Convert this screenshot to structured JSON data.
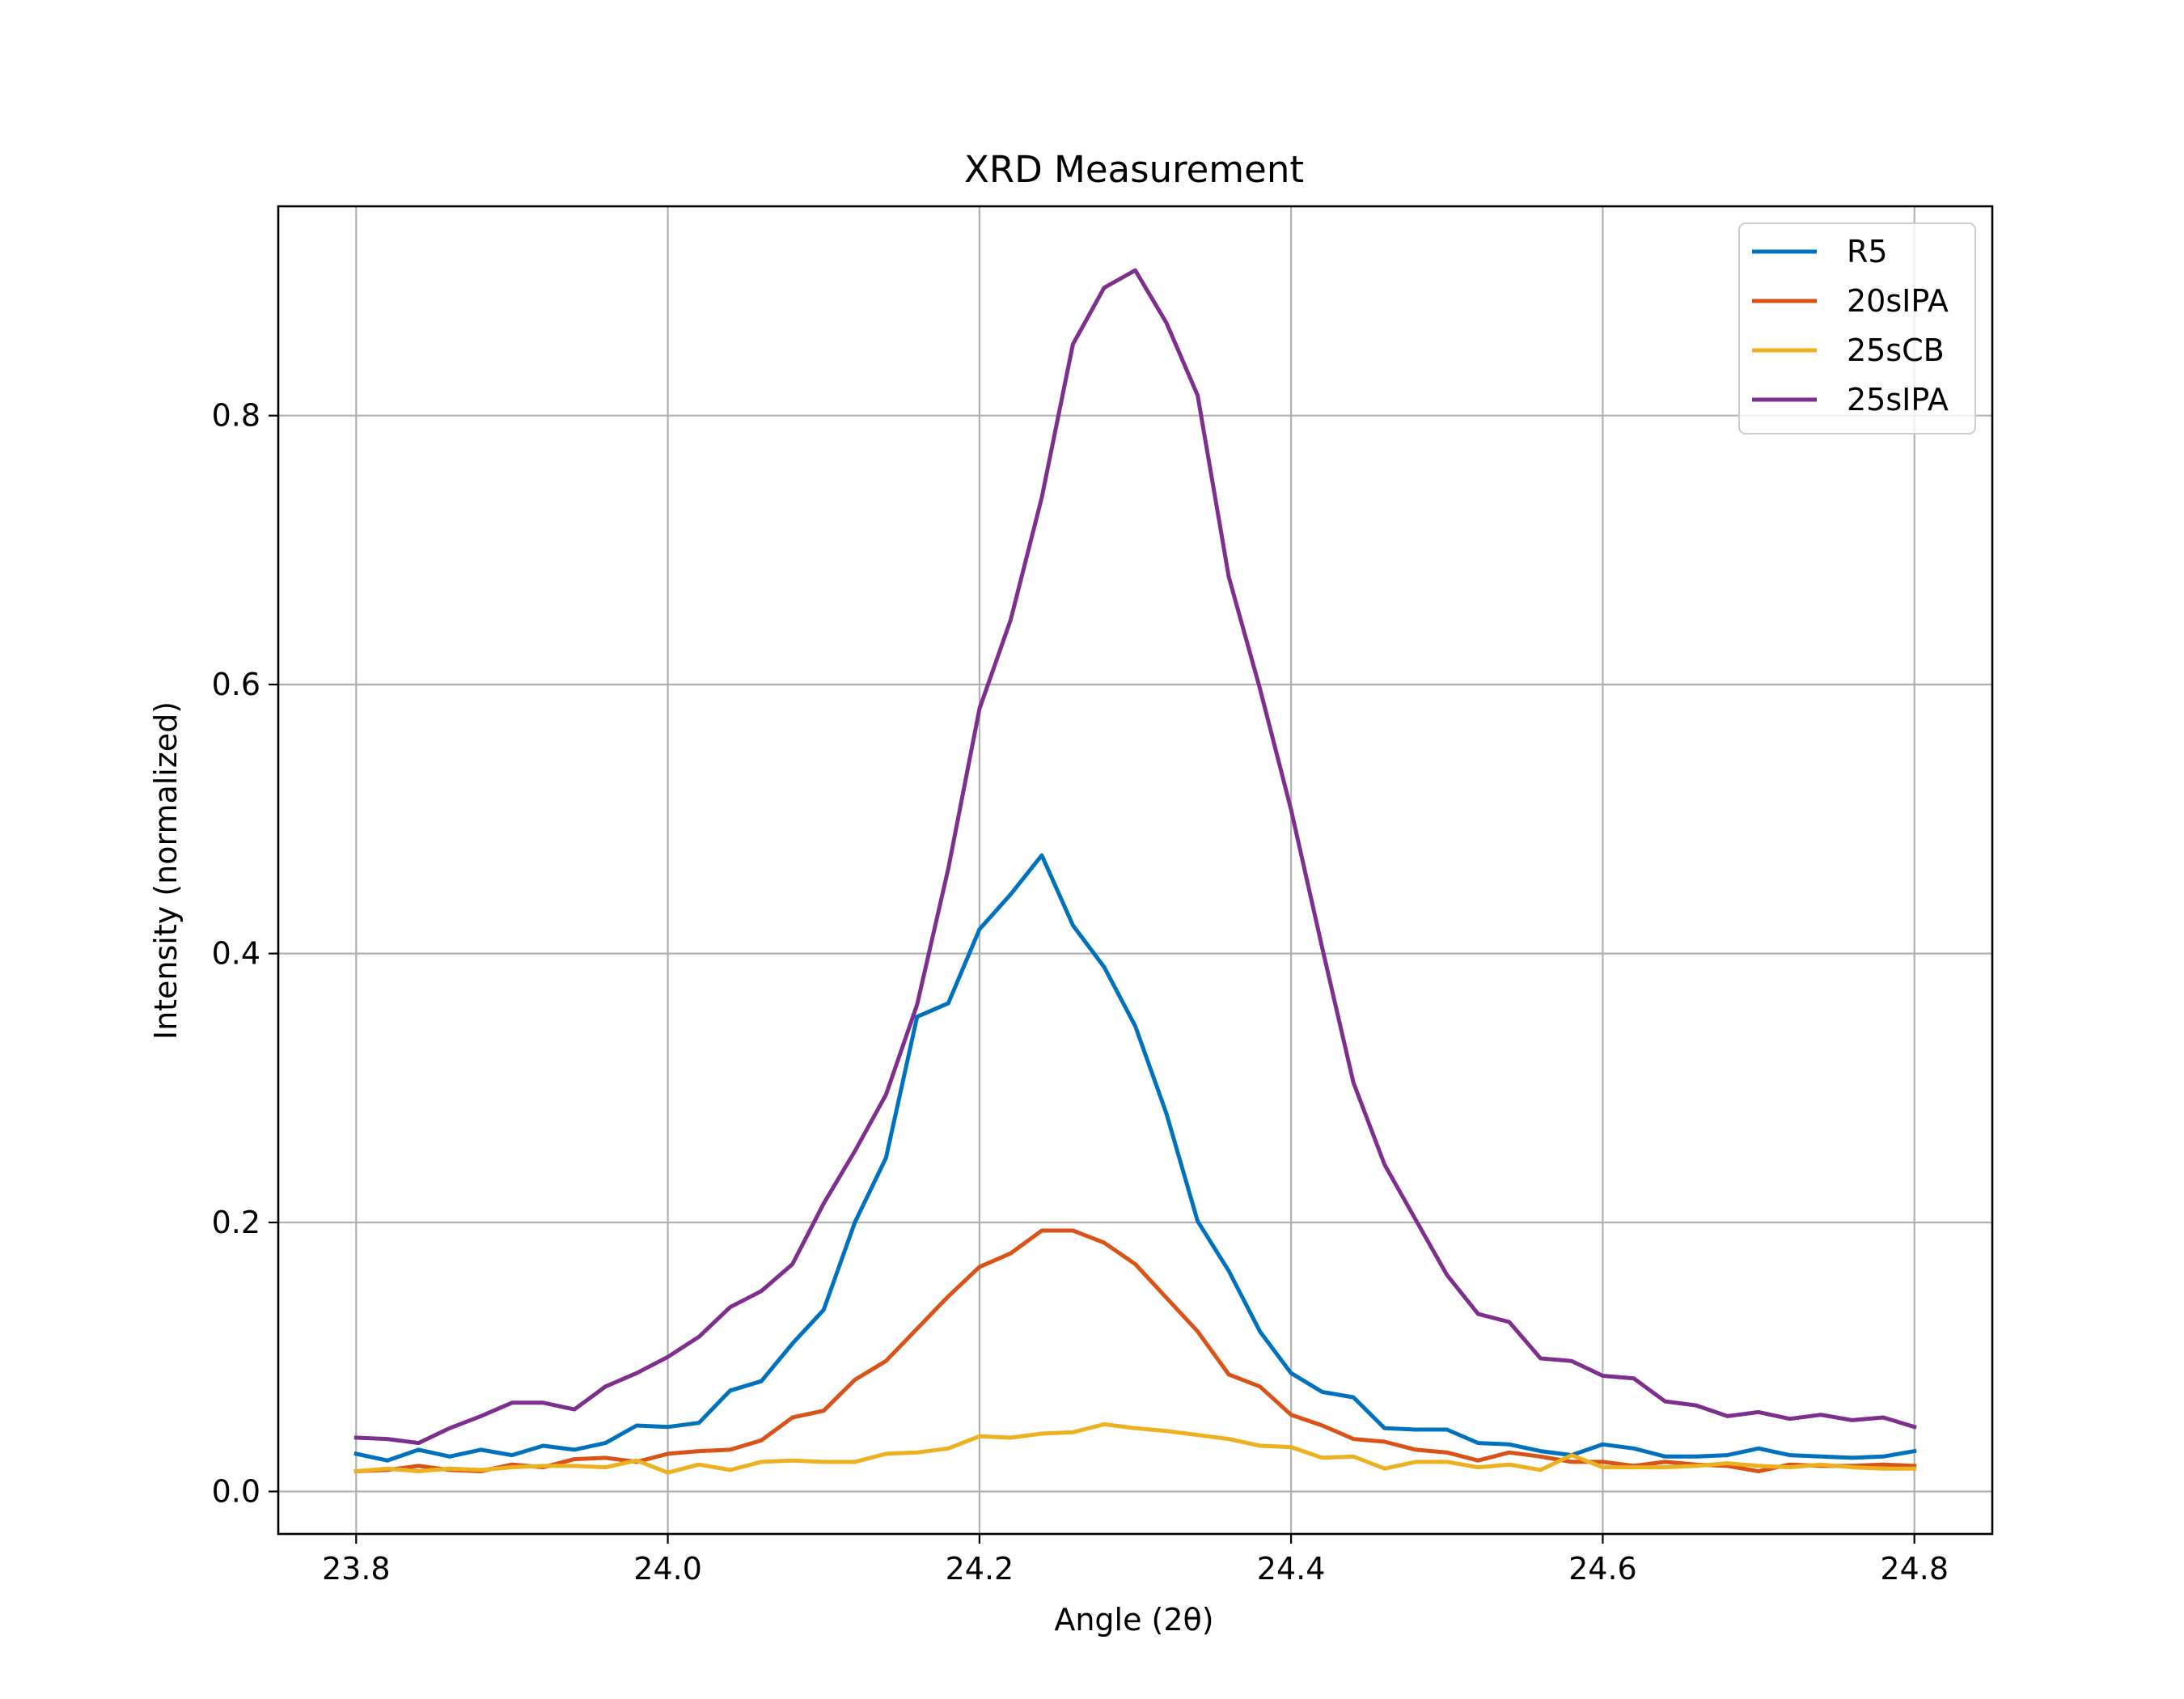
{
  "chart_data": {
    "type": "line",
    "title": "XRD Measurement",
    "xlabel": "Angle (2θ)",
    "ylabel": "Intensity (normalized)",
    "xlim": [
      23.75,
      24.85
    ],
    "ylim": [
      -0.0316,
      0.9556
    ],
    "xticks": [
      23.8,
      24.0,
      24.2,
      24.4,
      24.6,
      24.8
    ],
    "xtick_labels": [
      "23.8",
      "24.0",
      "24.2",
      "24.4",
      "24.6",
      "24.8"
    ],
    "yticks": [
      0.0,
      0.2,
      0.4,
      0.6,
      0.8
    ],
    "ytick_labels": [
      "0.0",
      "0.2",
      "0.4",
      "0.6",
      "0.8"
    ],
    "grid": true,
    "legend_position": "top-right",
    "x": [
      23.8,
      23.82,
      23.84,
      23.86,
      23.88,
      23.9,
      23.92,
      23.94,
      23.96,
      23.98,
      24.0,
      24.02,
      24.04,
      24.06,
      24.08,
      24.1,
      24.12,
      24.14,
      24.16,
      24.18,
      24.2,
      24.22,
      24.24,
      24.26,
      24.28,
      24.3,
      24.32,
      24.34,
      24.36,
      24.38,
      24.4,
      24.42,
      24.44,
      24.46,
      24.48,
      24.5,
      24.52,
      24.54,
      24.56,
      24.58,
      24.6,
      24.62,
      24.64,
      24.66,
      24.68,
      24.7,
      24.72,
      24.74,
      24.76,
      24.78,
      24.8
    ],
    "series": [
      {
        "name": "R5",
        "color": "#0072BD",
        "values": [
          0.028,
          0.023,
          0.031,
          0.026,
          0.031,
          0.027,
          0.034,
          0.031,
          0.036,
          0.049,
          0.048,
          0.051,
          0.075,
          0.082,
          0.11,
          0.135,
          0.2,
          0.248,
          0.353,
          0.363,
          0.418,
          0.444,
          0.473,
          0.421,
          0.39,
          0.346,
          0.281,
          0.201,
          0.164,
          0.119,
          0.088,
          0.074,
          0.07,
          0.047,
          0.046,
          0.046,
          0.036,
          0.035,
          0.03,
          0.027,
          0.035,
          0.032,
          0.026,
          0.026,
          0.027,
          0.032,
          0.027,
          0.026,
          0.025,
          0.026,
          0.03
        ]
      },
      {
        "name": "20sIPA",
        "color": "#D95319",
        "values": [
          0.015,
          0.016,
          0.019,
          0.016,
          0.015,
          0.02,
          0.018,
          0.024,
          0.025,
          0.022,
          0.028,
          0.03,
          0.031,
          0.038,
          0.055,
          0.06,
          0.083,
          0.097,
          0.121,
          0.145,
          0.167,
          0.177,
          0.194,
          0.194,
          0.185,
          0.169,
          0.144,
          0.119,
          0.087,
          0.078,
          0.057,
          0.049,
          0.039,
          0.037,
          0.031,
          0.029,
          0.023,
          0.029,
          0.026,
          0.022,
          0.022,
          0.019,
          0.022,
          0.02,
          0.019,
          0.015,
          0.02,
          0.019,
          0.019,
          0.02,
          0.019
        ]
      },
      {
        "name": "25sCB",
        "color": "#EDB120",
        "values": [
          0.015,
          0.017,
          0.015,
          0.017,
          0.016,
          0.018,
          0.019,
          0.019,
          0.018,
          0.023,
          0.014,
          0.02,
          0.016,
          0.022,
          0.023,
          0.022,
          0.022,
          0.028,
          0.029,
          0.032,
          0.041,
          0.04,
          0.043,
          0.044,
          0.05,
          0.047,
          0.045,
          0.042,
          0.039,
          0.034,
          0.033,
          0.025,
          0.026,
          0.017,
          0.022,
          0.022,
          0.018,
          0.02,
          0.016,
          0.027,
          0.018,
          0.018,
          0.018,
          0.019,
          0.021,
          0.019,
          0.018,
          0.02,
          0.018,
          0.017,
          0.017
        ]
      },
      {
        "name": "25sIPA",
        "color": "#7E2F8E",
        "values": [
          0.04,
          0.039,
          0.036,
          0.047,
          0.056,
          0.066,
          0.066,
          0.061,
          0.078,
          0.088,
          0.1,
          0.115,
          0.137,
          0.149,
          0.169,
          0.214,
          0.253,
          0.295,
          0.362,
          0.463,
          0.582,
          0.648,
          0.739,
          0.853,
          0.895,
          0.908,
          0.869,
          0.815,
          0.68,
          0.597,
          0.507,
          0.404,
          0.304,
          0.243,
          0.202,
          0.161,
          0.132,
          0.126,
          0.099,
          0.097,
          0.086,
          0.084,
          0.067,
          0.064,
          0.056,
          0.059,
          0.054,
          0.057,
          0.053,
          0.055,
          0.048
        ]
      }
    ]
  }
}
